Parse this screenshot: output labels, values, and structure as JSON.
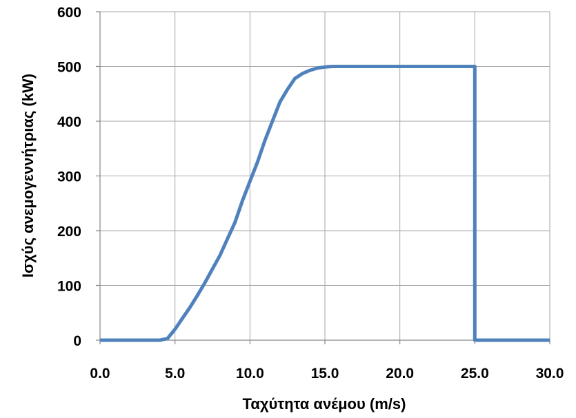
{
  "chart_data": {
    "type": "line",
    "title": "",
    "xlabel": "Ταχύτητα ανέμου (m/s)",
    "ylabel": "Ισχύς ανεμογεννήτριας (kW)",
    "xlim": [
      0,
      30
    ],
    "ylim": [
      0,
      600
    ],
    "x_ticks": [
      0,
      5,
      10,
      15,
      20,
      25,
      30
    ],
    "x_tick_labels": [
      "0.0",
      "5.0",
      "10.0",
      "15.0",
      "20.0",
      "25.0",
      "30.0"
    ],
    "y_ticks": [
      0,
      100,
      200,
      300,
      400,
      500,
      600
    ],
    "y_tick_labels": [
      "0",
      "100",
      "200",
      "300",
      "400",
      "500",
      "600"
    ],
    "grid": true,
    "legend": "none",
    "series": [
      {
        "color": "#4f81bd",
        "x": [
          0,
          4,
          4.5,
          5,
          5.5,
          6,
          6.5,
          7,
          7.5,
          8,
          8.5,
          9,
          9.5,
          10,
          10.5,
          11,
          11.5,
          12,
          12.5,
          13,
          13.5,
          14,
          14.5,
          15,
          15.5,
          16,
          20,
          25,
          25,
          30
        ],
        "y": [
          0,
          0,
          3,
          20,
          40,
          60,
          82,
          105,
          130,
          155,
          185,
          215,
          255,
          290,
          325,
          365,
          400,
          435,
          458,
          478,
          487,
          493,
          497,
          499,
          500,
          500,
          500,
          500,
          0,
          0
        ]
      }
    ]
  }
}
